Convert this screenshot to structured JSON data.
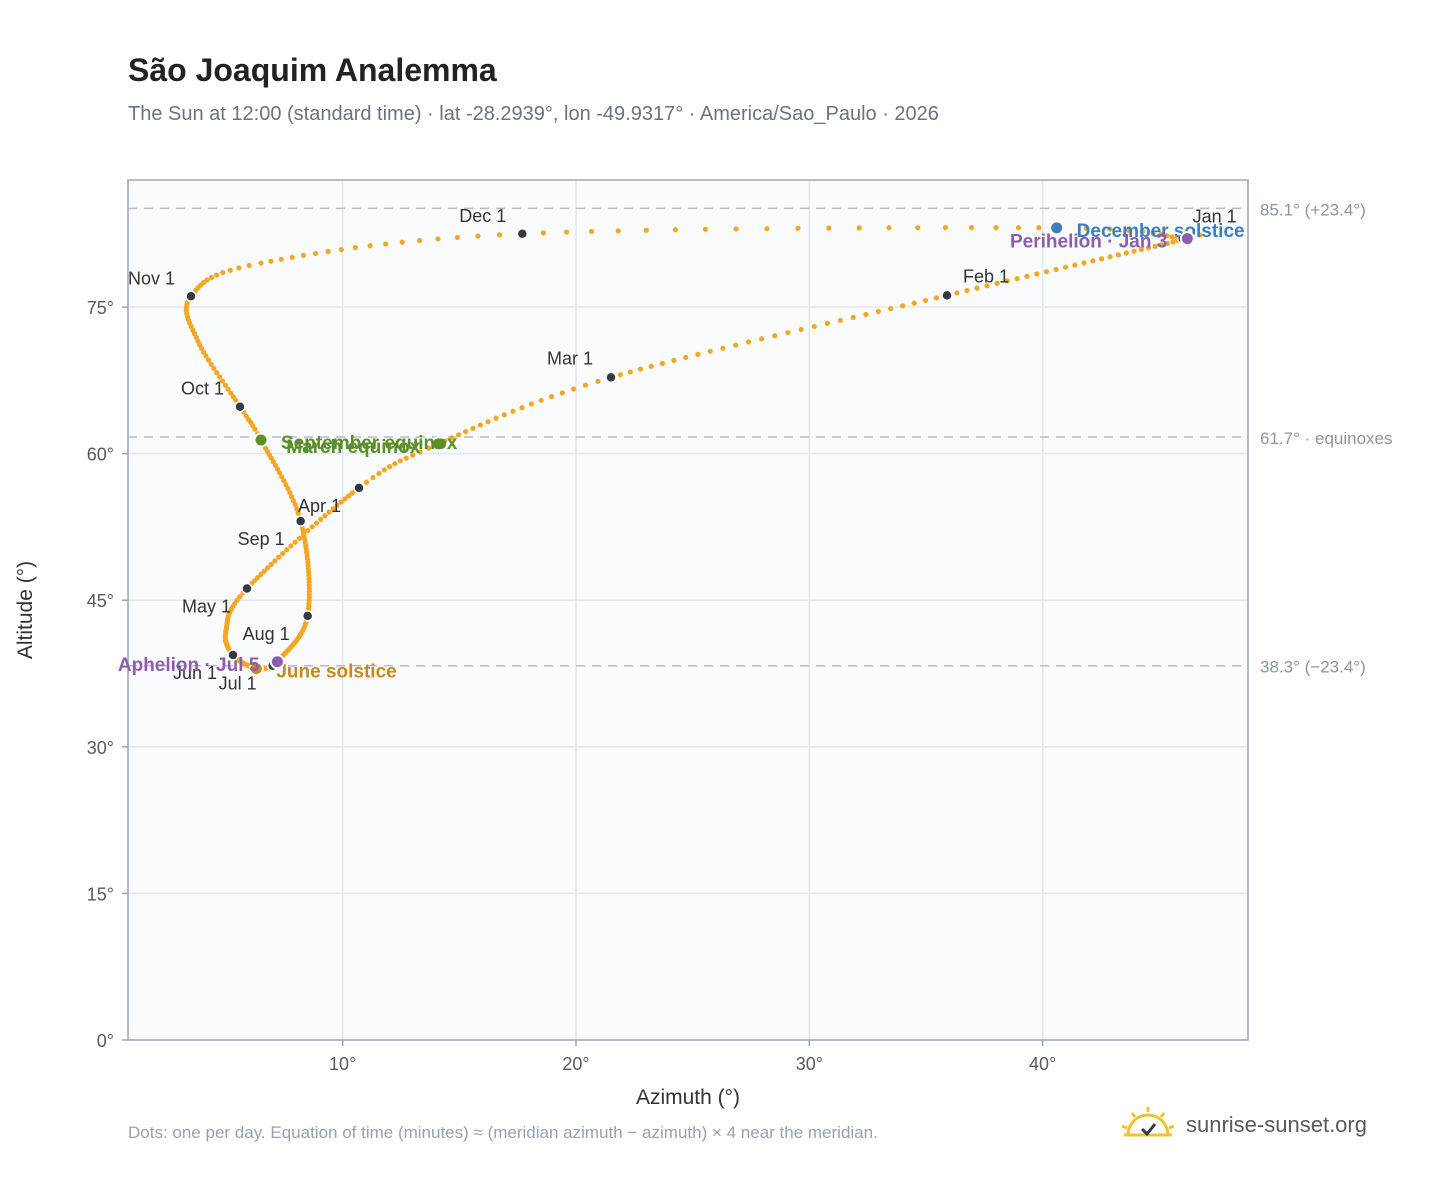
{
  "header": {
    "title": "São Joaquim Analemma",
    "subtitle": "The Sun at 12:00 (standard time) · lat -28.2939°, lon -49.9317° · America/Sao_Paulo · 2026"
  },
  "footer": {
    "note": "Dots: one per day. Equation of time (minutes) ≈ (meridian azimuth − azimuth) × 4 near the meridian.",
    "brand": "sunrise-sunset.org",
    "brand_icon": "sun-icon"
  },
  "colors": {
    "path": "#f5a623",
    "month_marker": "#343a40",
    "equinox": "#5a8f29",
    "december_solstice": "#3d7ebf",
    "june_solstice": "#c58a1a",
    "apsis": "#8e5cad",
    "plot_bg": "#f9fbfd",
    "grid": "#e3e8ee",
    "reference_line": "#b5bcc6"
  },
  "chart_data": {
    "type": "scatter",
    "xlabel": "Azimuth (°)",
    "ylabel": "Altitude (°)",
    "xlim": [
      0.8,
      48.8
    ],
    "ylim": [
      0,
      88
    ],
    "xticks": [
      {
        "value": 10,
        "label": "10°"
      },
      {
        "value": 20,
        "label": "20°"
      },
      {
        "value": 30,
        "label": "30°"
      },
      {
        "value": 40,
        "label": "40°"
      }
    ],
    "yticks": [
      {
        "value": 0,
        "label": "0°"
      },
      {
        "value": 15,
        "label": "15°"
      },
      {
        "value": 30,
        "label": "30°"
      },
      {
        "value": 45,
        "label": "45°"
      },
      {
        "value": 60,
        "label": "60°"
      },
      {
        "value": 75,
        "label": "75°"
      }
    ],
    "grid": true,
    "reference_lines": [
      {
        "value": 85.1,
        "label": "85.1° (+23.4°)"
      },
      {
        "value": 61.7,
        "label": "61.7° · equinoxes"
      },
      {
        "value": 38.3,
        "label": "38.3° (−23.4°)"
      }
    ],
    "path_anchors": [
      {
        "day": 0,
        "az": 46.0,
        "alt": 82.0
      },
      {
        "day": 2,
        "az": 46.2,
        "alt": 82.0
      },
      {
        "day": 31,
        "az": 35.9,
        "alt": 76.2
      },
      {
        "day": 59,
        "az": 21.5,
        "alt": 67.8
      },
      {
        "day": 78,
        "az": 14.1,
        "alt": 61.0
      },
      {
        "day": 90,
        "az": 10.7,
        "alt": 56.5
      },
      {
        "day": 120,
        "az": 5.9,
        "alt": 46.2
      },
      {
        "day": 136,
        "az": 5.0,
        "alt": 41.9
      },
      {
        "day": 151,
        "az": 5.3,
        "alt": 39.4
      },
      {
        "day": 171,
        "az": 6.3,
        "alt": 38.0
      },
      {
        "day": 181,
        "az": 7.0,
        "alt": 38.3
      },
      {
        "day": 185,
        "az": 7.2,
        "alt": 38.7
      },
      {
        "day": 212,
        "az": 8.5,
        "alt": 43.4
      },
      {
        "day": 243,
        "az": 8.2,
        "alt": 53.1
      },
      {
        "day": 265,
        "az": 6.5,
        "alt": 61.4
      },
      {
        "day": 273,
        "az": 5.6,
        "alt": 64.8
      },
      {
        "day": 290,
        "az": 3.8,
        "alt": 71.5
      },
      {
        "day": 304,
        "az": 3.5,
        "alt": 76.1
      },
      {
        "day": 317,
        "az": 6.5,
        "alt": 79.5
      },
      {
        "day": 334,
        "az": 17.7,
        "alt": 82.5
      },
      {
        "day": 354,
        "az": 40.6,
        "alt": 83.1
      },
      {
        "day": 364,
        "az": 46.0,
        "alt": 82.0
      }
    ],
    "month_markers": [
      {
        "label": "Jan 1",
        "az": 46.0,
        "alt": 82.0,
        "anchor": "start",
        "dx": 10,
        "dy": -16
      },
      {
        "label": "Feb 1",
        "az": 35.9,
        "alt": 76.2,
        "anchor": "start",
        "dx": 16,
        "dy": -13
      },
      {
        "label": "Mar 1",
        "az": 21.5,
        "alt": 67.8,
        "anchor": "end",
        "dx": -18,
        "dy": -13
      },
      {
        "label": "Apr 1",
        "az": 10.7,
        "alt": 56.5,
        "anchor": "end",
        "dx": -18,
        "dy": 24
      },
      {
        "label": "May 1",
        "az": 5.9,
        "alt": 46.2,
        "anchor": "end",
        "dx": -16,
        "dy": 24
      },
      {
        "label": "Jun 1",
        "az": 5.3,
        "alt": 39.4,
        "anchor": "end",
        "dx": -16,
        "dy": 24
      },
      {
        "label": "Jul 1",
        "az": 7.0,
        "alt": 38.3,
        "anchor": "end",
        "dx": -16,
        "dy": 24
      },
      {
        "label": "Aug 1",
        "az": 8.5,
        "alt": 43.4,
        "anchor": "end",
        "dx": -18,
        "dy": 24
      },
      {
        "label": "Sep 1",
        "az": 8.2,
        "alt": 53.1,
        "anchor": "end",
        "dx": -16,
        "dy": 24
      },
      {
        "label": "Oct 1",
        "az": 5.6,
        "alt": 64.8,
        "anchor": "end",
        "dx": -16,
        "dy": -12
      },
      {
        "label": "Nov 1",
        "az": 3.5,
        "alt": 76.1,
        "anchor": "end",
        "dx": -16,
        "dy": -12
      },
      {
        "label": "Dec 1",
        "az": 17.7,
        "alt": 82.5,
        "anchor": "end",
        "dx": -16,
        "dy": -12
      }
    ],
    "events": [
      {
        "label": "December solstice",
        "az": 40.6,
        "alt": 83.1,
        "color": "#3d7ebf",
        "anchor": "start",
        "dx": 20,
        "dy": 9
      },
      {
        "label": "Perihelion · Jan 3",
        "az": 46.2,
        "alt": 82.0,
        "color": "#8e5cad",
        "anchor": "end",
        "dx": -20,
        "dy": 9
      },
      {
        "label": "March equinox",
        "az": 14.1,
        "alt": 61.0,
        "color": "#5a8f29",
        "anchor": "end",
        "dx": -18,
        "dy": 9
      },
      {
        "label": "September equinox",
        "az": 6.5,
        "alt": 61.4,
        "color": "#5a8f29",
        "anchor": "start",
        "dx": 20,
        "dy": 9
      },
      {
        "label": "June solstice",
        "az": 6.3,
        "alt": 38.0,
        "color": "#c58a1a",
        "anchor": "start",
        "dx": 20,
        "dy": 9
      },
      {
        "label": "Aphelion · Jul 5",
        "az": 7.2,
        "alt": 38.7,
        "color": "#8e5cad",
        "anchor": "end",
        "dx": -18,
        "dy": 9
      }
    ]
  }
}
